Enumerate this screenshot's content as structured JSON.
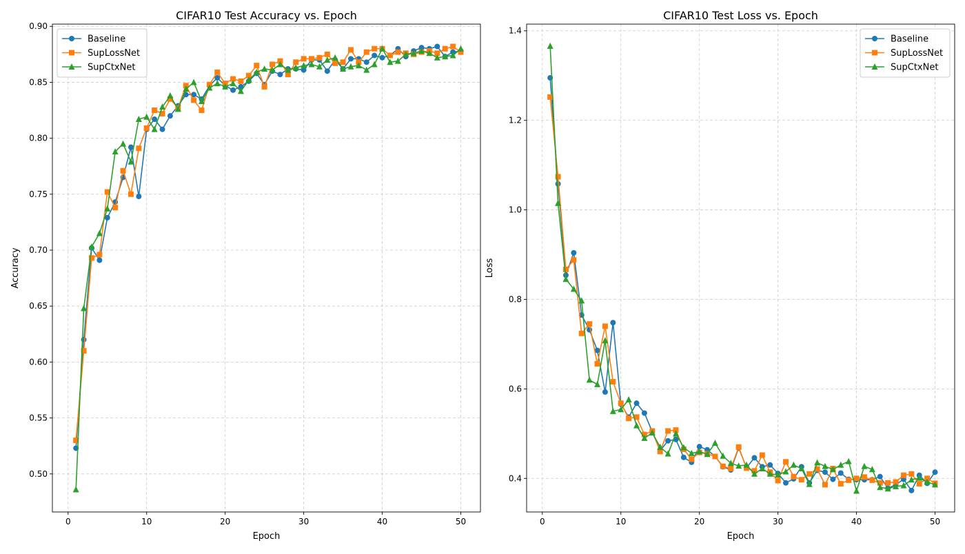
{
  "chart_data": [
    {
      "type": "line",
      "title": "CIFAR10 Test Accuracy vs. Epoch",
      "xlabel": "Epoch",
      "ylabel": "Accuracy",
      "xlim": [
        -2,
        52.5
      ],
      "ylim": [
        0.466,
        0.902
      ],
      "xticks": [
        0,
        10,
        20,
        30,
        40,
        50
      ],
      "yticks": [
        0.5,
        0.55,
        0.6,
        0.65,
        0.7,
        0.75,
        0.8,
        0.85,
        0.9
      ],
      "ytick_decimals": 2,
      "grid": true,
      "legend_position": "upper left",
      "x": [
        1,
        2,
        3,
        4,
        5,
        6,
        7,
        8,
        9,
        10,
        11,
        12,
        13,
        14,
        15,
        16,
        17,
        18,
        19,
        20,
        21,
        22,
        23,
        24,
        25,
        26,
        27,
        28,
        29,
        30,
        31,
        32,
        33,
        34,
        35,
        36,
        37,
        38,
        39,
        40,
        41,
        42,
        43,
        44,
        45,
        46,
        47,
        48,
        49,
        50
      ],
      "series": [
        {
          "name": "Baseline",
          "color": "#1f77b4",
          "marker": "circle",
          "values": [
            0.523,
            0.62,
            0.702,
            0.691,
            0.729,
            0.743,
            0.765,
            0.792,
            0.748,
            0.808,
            0.817,
            0.808,
            0.82,
            0.829,
            0.839,
            0.839,
            0.835,
            0.847,
            0.854,
            0.847,
            0.843,
            0.846,
            0.851,
            0.858,
            0.848,
            0.86,
            0.857,
            0.862,
            0.862,
            0.861,
            0.87,
            0.87,
            0.86,
            0.87,
            0.862,
            0.871,
            0.871,
            0.868,
            0.874,
            0.872,
            0.874,
            0.88,
            0.873,
            0.878,
            0.881,
            0.88,
            0.882,
            0.873,
            0.877,
            0.878
          ]
        },
        {
          "name": "SupLossNet",
          "color": "#ff7f0e",
          "marker": "square",
          "values": [
            0.53,
            0.61,
            0.693,
            0.696,
            0.752,
            0.738,
            0.771,
            0.75,
            0.791,
            0.809,
            0.825,
            0.822,
            0.835,
            0.827,
            0.847,
            0.834,
            0.825,
            0.848,
            0.859,
            0.849,
            0.853,
            0.851,
            0.856,
            0.865,
            0.846,
            0.866,
            0.869,
            0.857,
            0.868,
            0.871,
            0.871,
            0.872,
            0.875,
            0.867,
            0.868,
            0.879,
            0.868,
            0.877,
            0.88,
            0.88,
            0.874,
            0.877,
            0.876,
            0.875,
            0.877,
            0.878,
            0.876,
            0.88,
            0.882,
            0.877
          ]
        },
        {
          "name": "SupCtxNet",
          "color": "#2ca02c",
          "marker": "triangle",
          "values": [
            0.486,
            0.648,
            0.703,
            0.715,
            0.737,
            0.788,
            0.795,
            0.779,
            0.817,
            0.819,
            0.808,
            0.828,
            0.838,
            0.826,
            0.844,
            0.85,
            0.833,
            0.845,
            0.849,
            0.846,
            0.849,
            0.842,
            0.852,
            0.859,
            0.862,
            0.861,
            0.866,
            0.861,
            0.863,
            0.865,
            0.866,
            0.864,
            0.87,
            0.872,
            0.862,
            0.864,
            0.865,
            0.861,
            0.866,
            0.88,
            0.868,
            0.869,
            0.875,
            0.876,
            0.878,
            0.876,
            0.872,
            0.873,
            0.874,
            0.88
          ]
        }
      ]
    },
    {
      "type": "line",
      "title": "CIFAR10 Test Loss vs. Epoch",
      "xlabel": "Epoch",
      "ylabel": "Loss",
      "xlim": [
        -2,
        52.5
      ],
      "ylim": [
        0.325,
        1.415
      ],
      "xticks": [
        0,
        10,
        20,
        30,
        40,
        50
      ],
      "yticks": [
        0.4,
        0.6,
        0.8,
        1.0,
        1.2,
        1.4
      ],
      "ytick_decimals": 1,
      "grid": true,
      "legend_position": "upper right",
      "x": [
        1,
        2,
        3,
        4,
        5,
        6,
        7,
        8,
        9,
        10,
        11,
        12,
        13,
        14,
        15,
        16,
        17,
        18,
        19,
        20,
        21,
        22,
        23,
        24,
        25,
        26,
        27,
        28,
        29,
        30,
        31,
        32,
        33,
        34,
        35,
        36,
        37,
        38,
        39,
        40,
        41,
        42,
        43,
        44,
        45,
        46,
        47,
        48,
        49,
        50
      ],
      "series": [
        {
          "name": "Baseline",
          "color": "#1f77b4",
          "marker": "circle",
          "values": [
            1.295,
            1.058,
            0.854,
            0.904,
            0.765,
            0.732,
            0.686,
            0.593,
            0.748,
            0.566,
            0.537,
            0.568,
            0.546,
            0.504,
            0.462,
            0.484,
            0.487,
            0.447,
            0.436,
            0.471,
            0.464,
            0.449,
            0.426,
            0.419,
            0.468,
            0.424,
            0.446,
            0.426,
            0.43,
            0.411,
            0.39,
            0.399,
            0.426,
            0.39,
            0.418,
            0.414,
            0.398,
            0.412,
            0.398,
            0.397,
            0.397,
            0.397,
            0.404,
            0.378,
            0.386,
            0.398,
            0.373,
            0.407,
            0.389,
            0.414
          ]
        },
        {
          "name": "SupLossNet",
          "color": "#ff7f0e",
          "marker": "square",
          "values": [
            1.252,
            1.074,
            0.867,
            0.888,
            0.724,
            0.745,
            0.656,
            0.74,
            0.616,
            0.568,
            0.534,
            0.537,
            0.498,
            0.506,
            0.46,
            0.506,
            0.508,
            0.465,
            0.443,
            0.458,
            0.455,
            0.449,
            0.427,
            0.422,
            0.47,
            0.423,
            0.417,
            0.452,
            0.414,
            0.395,
            0.437,
            0.404,
            0.397,
            0.41,
            0.421,
            0.386,
            0.422,
            0.388,
            0.396,
            0.4,
            0.403,
            0.396,
            0.39,
            0.39,
            0.392,
            0.407,
            0.41,
            0.388,
            0.4,
            0.389
          ]
        },
        {
          "name": "SupCtxNet",
          "color": "#2ca02c",
          "marker": "triangle",
          "values": [
            1.366,
            1.015,
            0.845,
            0.823,
            0.797,
            0.62,
            0.61,
            0.708,
            0.55,
            0.554,
            0.576,
            0.518,
            0.49,
            0.502,
            0.47,
            0.455,
            0.5,
            0.469,
            0.456,
            0.46,
            0.454,
            0.479,
            0.45,
            0.434,
            0.428,
            0.43,
            0.41,
            0.422,
            0.41,
            0.408,
            0.415,
            0.43,
            0.422,
            0.387,
            0.435,
            0.427,
            0.42,
            0.43,
            0.438,
            0.372,
            0.427,
            0.42,
            0.38,
            0.377,
            0.382,
            0.384,
            0.397,
            0.401,
            0.392,
            0.386
          ]
        }
      ]
    }
  ]
}
